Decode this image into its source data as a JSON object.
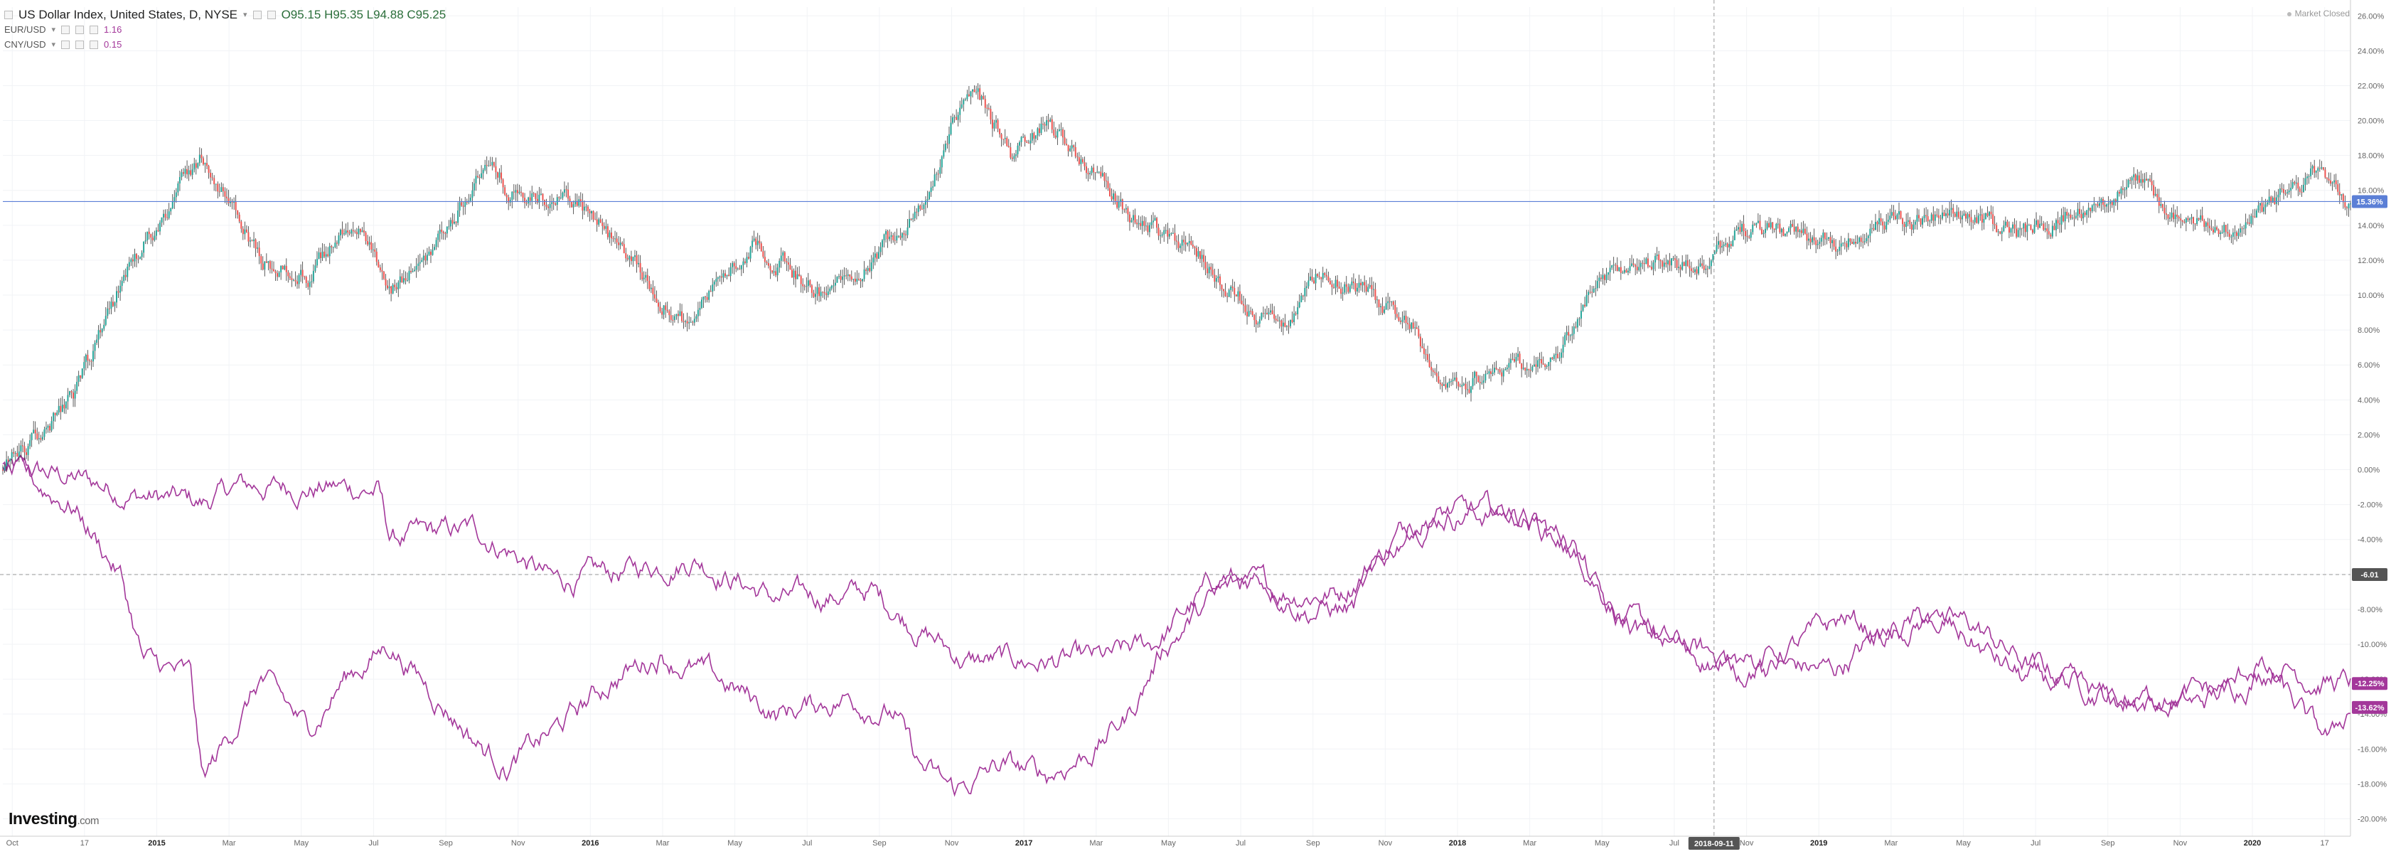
{
  "legend": {
    "main": {
      "title": "US Dollar Index, United States, D, NYSE",
      "ohlc": {
        "O": "95.15",
        "H": "95.35",
        "L": "94.88",
        "C": "95.25"
      },
      "o_prefix": "O",
      "h_prefix": "H",
      "l_prefix": "L",
      "c_prefix": "C"
    },
    "compare": [
      {
        "symbol": "EUR/USD",
        "value": "1.16"
      },
      {
        "symbol": "CNY/USD",
        "value": "0.15"
      }
    ]
  },
  "market_status": "Market Closed",
  "brand": {
    "name": "Investing",
    "suffix": ".com"
  },
  "colors": {
    "up": "#26a69a",
    "down": "#ef5350",
    "compare": "#a3379a",
    "current_line": "#5b7fd6",
    "grid": "#f1f3f6",
    "crosshair": "#999999"
  },
  "chart_data": {
    "type": "line",
    "x_axis": {
      "ticks": [
        "Oct",
        "17",
        "2015",
        "Mar",
        "May",
        "Jul",
        "Sep",
        "Nov",
        "2016",
        "Mar",
        "May",
        "Jul",
        "Sep",
        "Nov",
        "2017",
        "Mar",
        "May",
        "Jul",
        "Sep",
        "Nov",
        "2018",
        "Mar",
        "May",
        "Jul",
        "Nov",
        "2019",
        "Mar",
        "May",
        "Jul",
        "Sep",
        "Nov",
        "2020",
        "17"
      ],
      "bold_ticks": [
        "2015",
        "2016",
        "2017",
        "2018",
        "2019",
        "2020"
      ],
      "crosshair_label": "2018-09-11"
    },
    "y_axis": {
      "ticks": [
        "26.00%",
        "24.00%",
        "22.00%",
        "20.00%",
        "18.00%",
        "16.00%",
        "14.00%",
        "12.00%",
        "10.00%",
        "8.00%",
        "6.00%",
        "4.00%",
        "2.00%",
        "0.00%",
        "-2.00%",
        "-4.00%",
        "-6.00%",
        "-8.00%",
        "-10.00%",
        "-12.00%",
        "-14.00%",
        "-16.00%",
        "-18.00%",
        "-20.00%"
      ],
      "range": [
        -21,
        26.5
      ],
      "crosshair_label": "-6.01",
      "crosshair_value": -6.01
    },
    "series": [
      {
        "name": "US Dollar Index",
        "style": "candlestick",
        "current_label": "15.36%",
        "current_value": 15.36,
        "keypoints": [
          [
            0,
            0
          ],
          [
            0.03,
            4
          ],
          [
            0.055,
            12
          ],
          [
            0.085,
            18
          ],
          [
            0.11,
            12
          ],
          [
            0.13,
            11
          ],
          [
            0.15,
            14.5
          ],
          [
            0.165,
            10
          ],
          [
            0.185,
            13
          ],
          [
            0.205,
            17.5
          ],
          [
            0.22,
            15.5
          ],
          [
            0.245,
            15.5
          ],
          [
            0.26,
            13
          ],
          [
            0.29,
            8.5
          ],
          [
            0.32,
            13
          ],
          [
            0.35,
            10
          ],
          [
            0.37,
            12
          ],
          [
            0.395,
            16
          ],
          [
            0.405,
            20
          ],
          [
            0.415,
            21.5
          ],
          [
            0.43,
            18
          ],
          [
            0.445,
            20
          ],
          [
            0.465,
            17
          ],
          [
            0.48,
            14.5
          ],
          [
            0.505,
            13
          ],
          [
            0.525,
            10
          ],
          [
            0.545,
            8
          ],
          [
            0.56,
            11
          ],
          [
            0.575,
            10.5
          ],
          [
            0.6,
            8.5
          ],
          [
            0.615,
            4.5
          ],
          [
            0.64,
            6
          ],
          [
            0.66,
            6
          ],
          [
            0.675,
            10
          ],
          [
            0.695,
            12
          ],
          [
            0.725,
            11.5
          ],
          [
            0.74,
            14
          ],
          [
            0.78,
            13
          ],
          [
            0.8,
            14
          ],
          [
            0.84,
            14.5
          ],
          [
            0.86,
            13.5
          ],
          [
            0.885,
            15
          ],
          [
            0.91,
            16.5
          ],
          [
            0.93,
            14
          ],
          [
            0.955,
            14
          ],
          [
            0.97,
            15.5
          ],
          [
            0.985,
            17
          ],
          [
            1,
            15.36
          ]
        ]
      },
      {
        "name": "EUR/USD",
        "style": "line",
        "current_label": "-12.25%",
        "current_value": -12.25,
        "keypoints": [
          [
            0,
            0
          ],
          [
            0.03,
            -0.5
          ],
          [
            0.06,
            -1.5
          ],
          [
            0.085,
            -2
          ],
          [
            0.1,
            -1
          ],
          [
            0.14,
            -1
          ],
          [
            0.16,
            -1.2
          ],
          [
            0.165,
            -4
          ],
          [
            0.2,
            -3.5
          ],
          [
            0.215,
            -4.5
          ],
          [
            0.235,
            -6.5
          ],
          [
            0.26,
            -6
          ],
          [
            0.295,
            -5
          ],
          [
            0.33,
            -7.5
          ],
          [
            0.37,
            -7
          ],
          [
            0.395,
            -9.5
          ],
          [
            0.41,
            -11
          ],
          [
            0.43,
            -11
          ],
          [
            0.47,
            -11
          ],
          [
            0.49,
            -10
          ],
          [
            0.52,
            -6
          ],
          [
            0.54,
            -7
          ],
          [
            0.57,
            -7
          ],
          [
            0.6,
            -3
          ],
          [
            0.615,
            -2.5
          ],
          [
            0.645,
            -2.5
          ],
          [
            0.67,
            -4.5
          ],
          [
            0.69,
            -8.5
          ],
          [
            0.71,
            -10
          ],
          [
            0.74,
            -11
          ],
          [
            0.78,
            -11.5
          ],
          [
            0.8,
            -9.5
          ],
          [
            0.82,
            -8.5
          ],
          [
            0.84,
            -9
          ],
          [
            0.86,
            -11
          ],
          [
            0.9,
            -13
          ],
          [
            0.935,
            -13.5
          ],
          [
            0.95,
            -12.5
          ],
          [
            0.97,
            -11
          ],
          [
            0.985,
            -12
          ],
          [
            1,
            -12.25
          ]
        ]
      },
      {
        "name": "CNY/USD",
        "style": "line",
        "current_label": "-13.62%",
        "current_value": -13.62,
        "keypoints": [
          [
            0,
            0
          ],
          [
            0.03,
            -2
          ],
          [
            0.05,
            -6
          ],
          [
            0.06,
            -11
          ],
          [
            0.08,
            -12
          ],
          [
            0.085,
            -18
          ],
          [
            0.11,
            -12
          ],
          [
            0.13,
            -15
          ],
          [
            0.145,
            -12
          ],
          [
            0.165,
            -10
          ],
          [
            0.185,
            -13
          ],
          [
            0.205,
            -16
          ],
          [
            0.215,
            -17
          ],
          [
            0.235,
            -15
          ],
          [
            0.26,
            -12
          ],
          [
            0.28,
            -10.5
          ],
          [
            0.31,
            -12.5
          ],
          [
            0.33,
            -14
          ],
          [
            0.36,
            -13
          ],
          [
            0.38,
            -14
          ],
          [
            0.39,
            -17
          ],
          [
            0.405,
            -18.5
          ],
          [
            0.425,
            -17
          ],
          [
            0.445,
            -17.5
          ],
          [
            0.465,
            -16
          ],
          [
            0.48,
            -14
          ],
          [
            0.495,
            -10
          ],
          [
            0.515,
            -7.5
          ],
          [
            0.535,
            -6
          ],
          [
            0.555,
            -8
          ],
          [
            0.575,
            -8
          ],
          [
            0.6,
            -3
          ],
          [
            0.615,
            -2.5
          ],
          [
            0.645,
            -2.5
          ],
          [
            0.67,
            -4.5
          ],
          [
            0.685,
            -8.5
          ],
          [
            0.71,
            -10
          ],
          [
            0.74,
            -11.5
          ],
          [
            0.765,
            -10
          ],
          [
            0.785,
            -8.5
          ],
          [
            0.8,
            -9.5
          ],
          [
            0.82,
            -8.5
          ],
          [
            0.84,
            -10
          ],
          [
            0.86,
            -12
          ],
          [
            0.88,
            -12.5
          ],
          [
            0.9,
            -13.5
          ],
          [
            0.92,
            -13
          ],
          [
            0.95,
            -12.5
          ],
          [
            0.96,
            -11
          ],
          [
            0.97,
            -12.5
          ],
          [
            0.985,
            -15
          ],
          [
            0.992,
            -15.5
          ],
          [
            1,
            -13.62
          ]
        ]
      }
    ]
  }
}
